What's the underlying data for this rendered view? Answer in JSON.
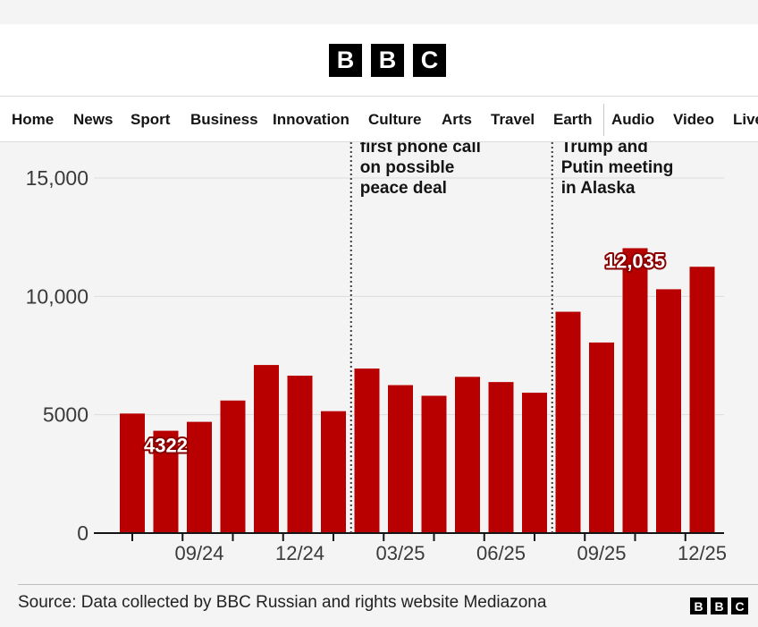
{
  "header": {
    "logo_letters": [
      "B",
      "B",
      "C"
    ]
  },
  "nav": {
    "items": [
      "Home",
      "News",
      "Sport",
      "Business",
      "Innovation",
      "Culture",
      "Arts",
      "Travel",
      "Earth",
      "Audio",
      "Video",
      "Live"
    ]
  },
  "chart_data": {
    "type": "bar",
    "bar_color": "#b80000",
    "ylim": [
      0,
      15000
    ],
    "y_ticks": [
      "0",
      "5000",
      "10,000",
      "15,000"
    ],
    "x_tick_labels": [
      "09/24",
      "12/24",
      "03/25",
      "06/25",
      "09/25",
      "12/25"
    ],
    "values": [
      5050,
      4322,
      4700,
      5600,
      7100,
      6650,
      5150,
      6950,
      6250,
      5800,
      6600,
      6380,
      5930,
      9350,
      8050,
      12035,
      10300,
      11250
    ],
    "data_labels": [
      {
        "index": 1,
        "text": "4322"
      },
      {
        "index": 15,
        "text": "12,035"
      }
    ],
    "annotations": [
      {
        "after_index": 6,
        "lines": [
          "first phone call",
          "on possible",
          "peace deal"
        ]
      },
      {
        "after_index": 12,
        "lines": [
          "Trump and",
          "Putin meeting",
          "in Alaska"
        ]
      }
    ]
  },
  "footer": {
    "source": "Source: Data collected by BBC Russian and rights website Mediazona",
    "logo_letters": [
      "B",
      "B",
      "C"
    ]
  }
}
